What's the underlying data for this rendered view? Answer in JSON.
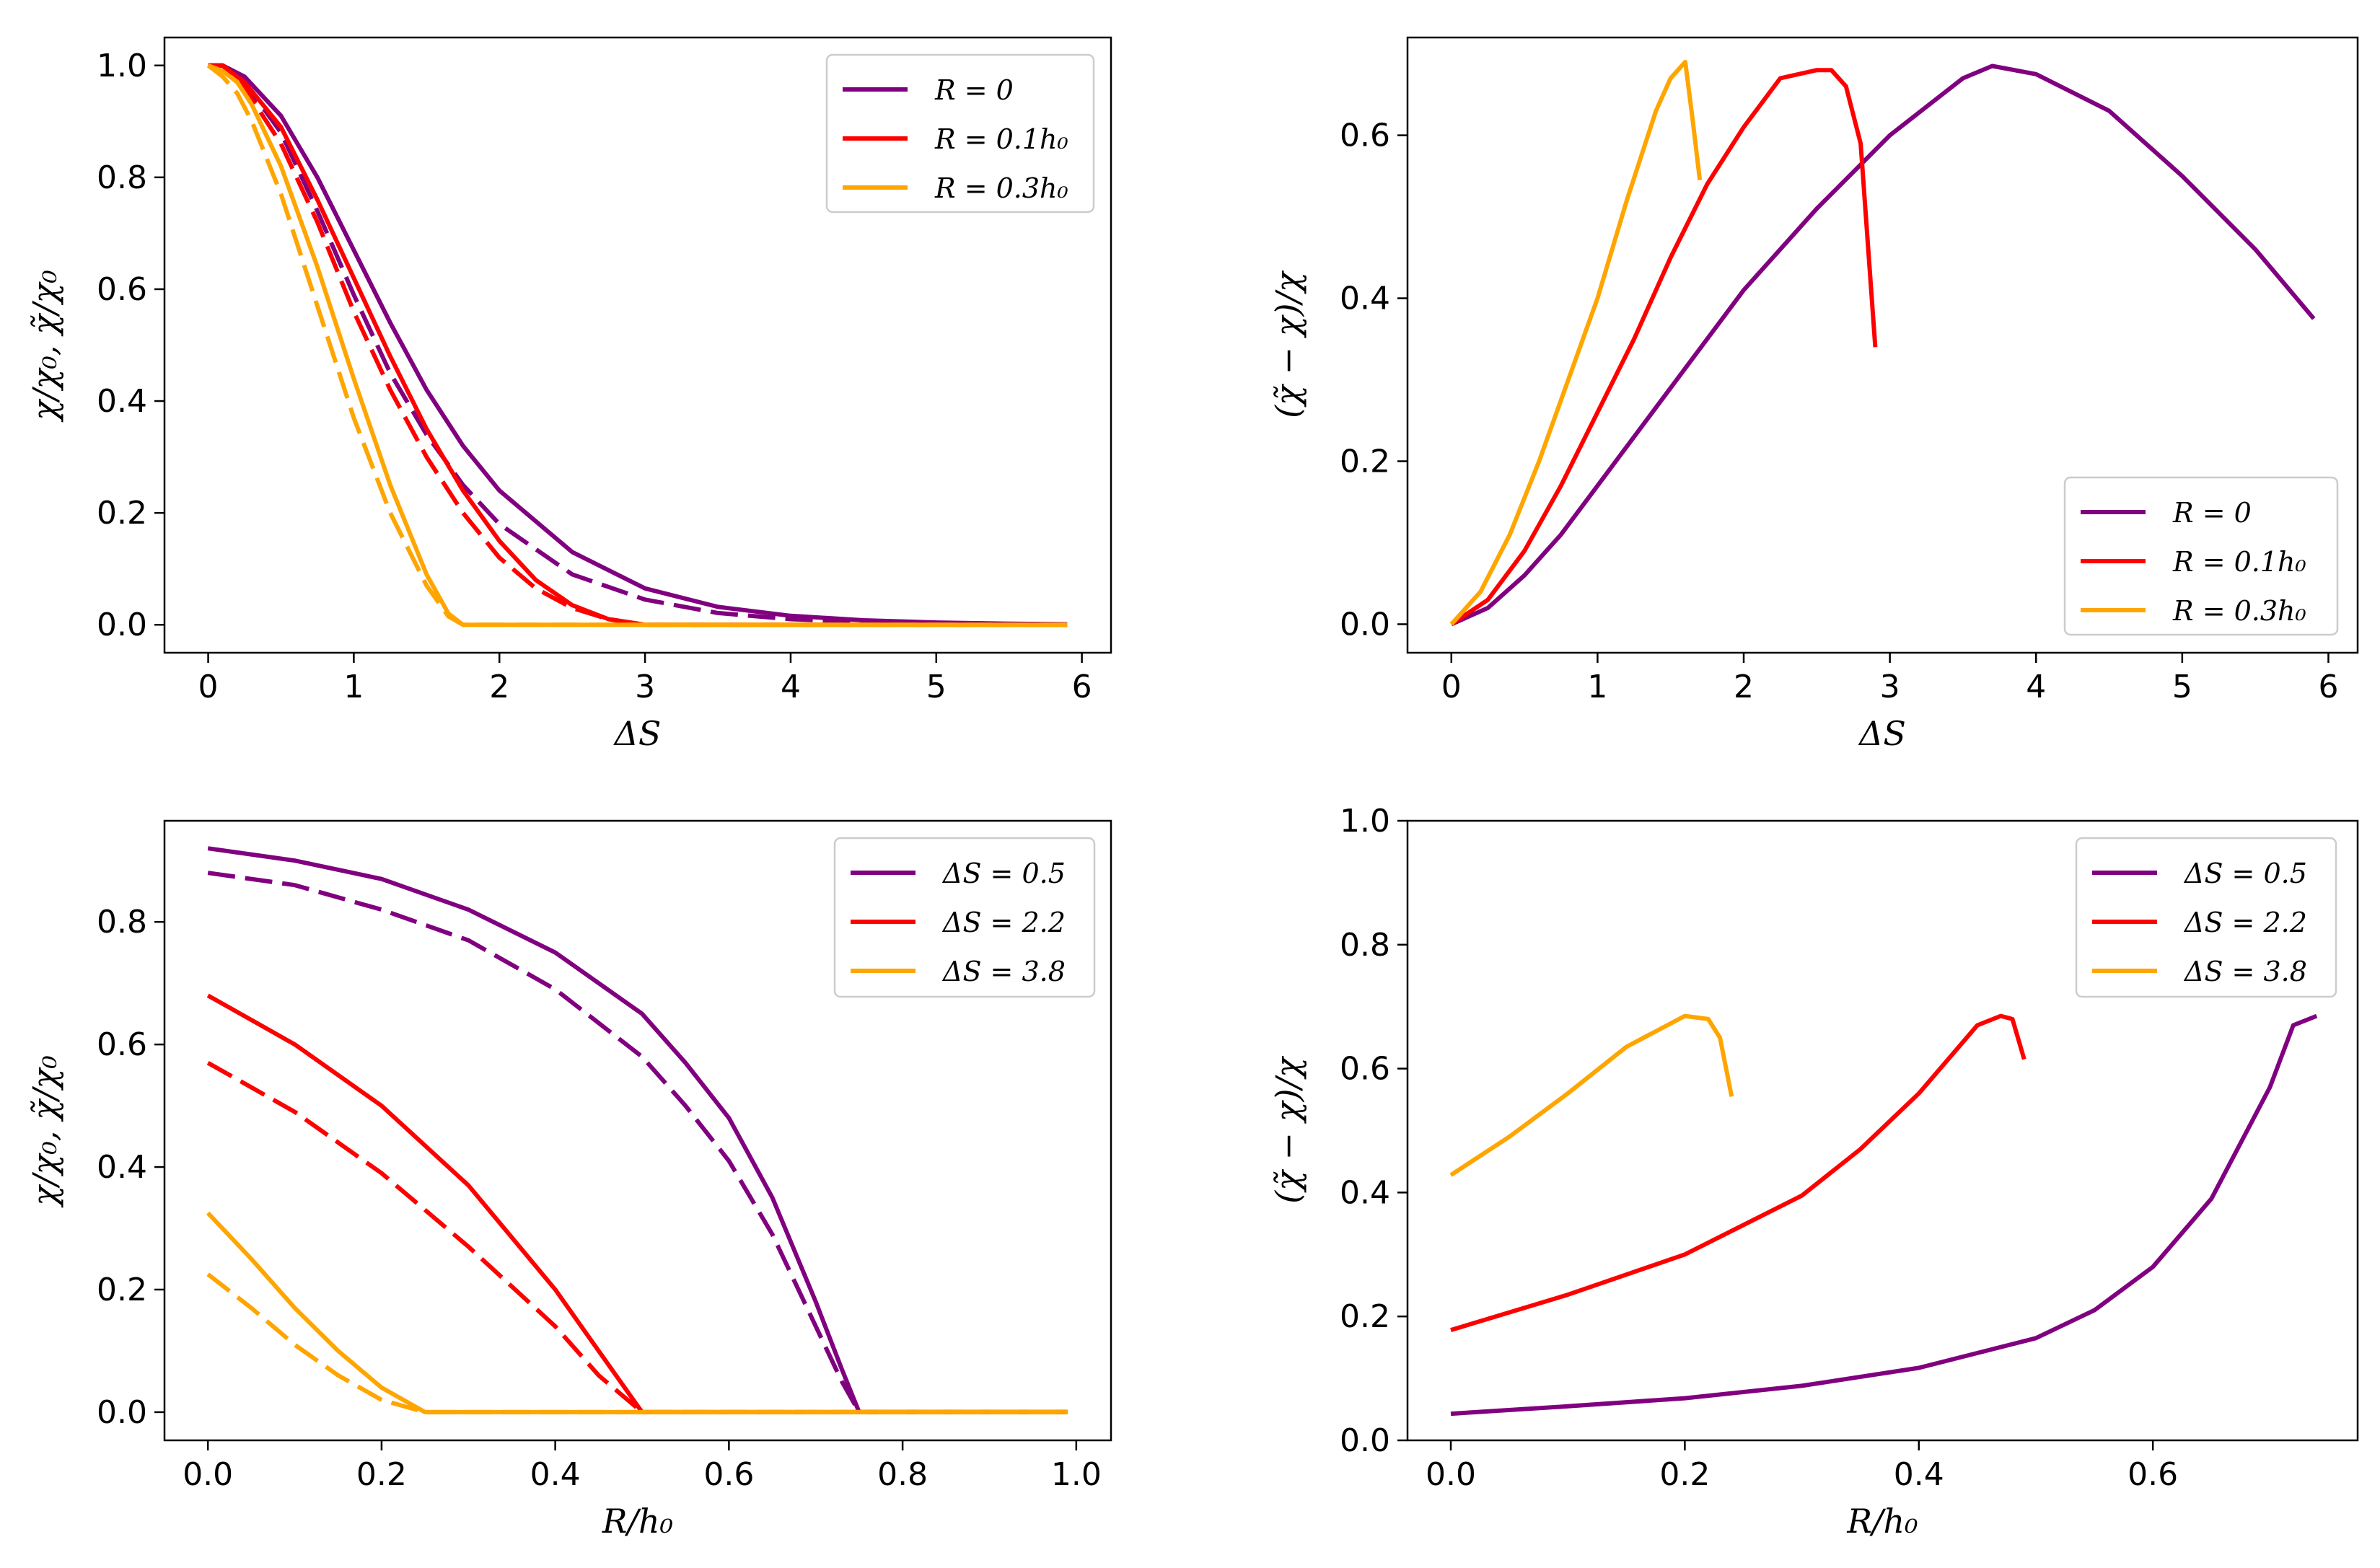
{
  "colors": {
    "purple": "#800080",
    "red": "#ff0000",
    "orange": "#ffa500"
  },
  "chart_data": [
    {
      "id": "top-left",
      "type": "line",
      "xlabel": "ΔS",
      "ylabel": "χ/χ₀, χ̃/χ₀",
      "xlim": [
        -0.3,
        6.2
      ],
      "ylim": [
        -0.05,
        1.05
      ],
      "xticks": [
        "0",
        "1",
        "2",
        "3",
        "4",
        "5",
        "6"
      ],
      "xtick_values": [
        0,
        1,
        2,
        3,
        4,
        5,
        6
      ],
      "yticks": [
        "0.0",
        "0.2",
        "0.4",
        "0.6",
        "0.8",
        "1.0"
      ],
      "ytick_values": [
        0,
        0.2,
        0.4,
        0.6,
        0.8,
        1.0
      ],
      "legend_position": "top-right",
      "legend": [
        "R = 0",
        "R = 0.1h₀",
        "R = 0.3h₀"
      ],
      "series": [
        {
          "name": "R = 0 (χ̃/χ₀)",
          "color": "purple",
          "dash": "solid",
          "x": [
            0,
            0.1,
            0.25,
            0.5,
            0.75,
            1.0,
            1.25,
            1.5,
            1.75,
            2.0,
            2.5,
            3.0,
            3.5,
            4.0,
            4.5,
            5.0,
            5.5,
            5.9
          ],
          "y": [
            1.0,
            1.0,
            0.98,
            0.91,
            0.8,
            0.67,
            0.54,
            0.42,
            0.32,
            0.24,
            0.13,
            0.065,
            0.032,
            0.016,
            0.008,
            0.004,
            0.002,
            0.001
          ]
        },
        {
          "name": "R = 0 (χ/χ₀)",
          "color": "purple",
          "dash": "dashed",
          "x": [
            0,
            0.1,
            0.25,
            0.5,
            0.75,
            1.0,
            1.25,
            1.5,
            1.75,
            2.0,
            2.5,
            3.0,
            3.5,
            4.0,
            4.5,
            5.0,
            5.5,
            5.9
          ],
          "y": [
            1.0,
            1.0,
            0.97,
            0.88,
            0.74,
            0.59,
            0.45,
            0.34,
            0.25,
            0.18,
            0.09,
            0.045,
            0.021,
            0.01,
            0.005,
            0.002,
            0.001,
            0.0
          ]
        },
        {
          "name": "R = 0.1h₀ (χ̃/χ₀)",
          "color": "red",
          "dash": "solid",
          "x": [
            0,
            0.1,
            0.25,
            0.5,
            0.75,
            1.0,
            1.25,
            1.5,
            1.75,
            2.0,
            2.25,
            2.5,
            2.75,
            3.0,
            3.5,
            4.0,
            5.0,
            5.9
          ],
          "y": [
            1.0,
            1.0,
            0.97,
            0.89,
            0.76,
            0.62,
            0.48,
            0.35,
            0.24,
            0.15,
            0.08,
            0.035,
            0.01,
            0.0,
            0.0,
            0.0,
            0.0,
            0.0
          ]
        },
        {
          "name": "R = 0.1h₀ (χ/χ₀)",
          "color": "red",
          "dash": "dashed",
          "x": [
            0,
            0.1,
            0.25,
            0.5,
            0.75,
            1.0,
            1.25,
            1.5,
            1.75,
            2.0,
            2.25,
            2.5,
            2.75,
            3.0,
            3.5,
            4.0,
            5.0,
            5.9
          ],
          "y": [
            1.0,
            1.0,
            0.96,
            0.86,
            0.72,
            0.56,
            0.42,
            0.3,
            0.2,
            0.12,
            0.065,
            0.03,
            0.01,
            0.0,
            0.0,
            0.0,
            0.0,
            0.0
          ]
        },
        {
          "name": "R = 0.3h₀ (χ̃/χ₀)",
          "color": "orange",
          "dash": "solid",
          "x": [
            0,
            0.1,
            0.2,
            0.3,
            0.5,
            0.75,
            1.0,
            1.25,
            1.5,
            1.65,
            1.75,
            2.0,
            3.0,
            4.0,
            5.0,
            5.9
          ],
          "y": [
            1.0,
            0.99,
            0.97,
            0.93,
            0.82,
            0.64,
            0.44,
            0.25,
            0.09,
            0.02,
            0.0,
            0.0,
            0.0,
            0.0,
            0.0,
            0.0
          ]
        },
        {
          "name": "R = 0.3h₀ (χ/χ₀)",
          "color": "orange",
          "dash": "dashed",
          "x": [
            0,
            0.1,
            0.2,
            0.3,
            0.5,
            0.75,
            1.0,
            1.25,
            1.5,
            1.65,
            1.75,
            2.0,
            3.0,
            4.0,
            5.0,
            5.9
          ],
          "y": [
            1.0,
            0.98,
            0.95,
            0.9,
            0.77,
            0.57,
            0.37,
            0.2,
            0.07,
            0.015,
            0.0,
            0.0,
            0.0,
            0.0,
            0.0,
            0.0
          ]
        }
      ]
    },
    {
      "id": "top-right",
      "type": "line",
      "xlabel": "ΔS",
      "ylabel": "(χ̃ − χ)/χ",
      "xlim": [
        -0.3,
        6.2
      ],
      "ylim": [
        -0.035,
        0.72
      ],
      "xticks": [
        "0",
        "1",
        "2",
        "3",
        "4",
        "5",
        "6"
      ],
      "xtick_values": [
        0,
        1,
        2,
        3,
        4,
        5,
        6
      ],
      "yticks": [
        "0.0",
        "0.2",
        "0.4",
        "0.6"
      ],
      "ytick_values": [
        0,
        0.2,
        0.4,
        0.6
      ],
      "legend_position": "bottom-right",
      "legend": [
        "R = 0",
        "R = 0.1h₀",
        "R = 0.3h₀"
      ],
      "series": [
        {
          "name": "R = 0",
          "color": "purple",
          "dash": "solid",
          "x": [
            0,
            0.25,
            0.5,
            0.75,
            1.0,
            1.5,
            2.0,
            2.5,
            3.0,
            3.5,
            3.7,
            4.0,
            4.5,
            5.0,
            5.5,
            5.9
          ],
          "y": [
            0.0,
            0.02,
            0.06,
            0.11,
            0.17,
            0.29,
            0.41,
            0.51,
            0.6,
            0.67,
            0.685,
            0.675,
            0.63,
            0.55,
            0.46,
            0.375
          ]
        },
        {
          "name": "R = 0.1h₀",
          "color": "red",
          "dash": "solid",
          "x": [
            0,
            0.25,
            0.5,
            0.75,
            1.0,
            1.25,
            1.5,
            1.75,
            2.0,
            2.25,
            2.5,
            2.6,
            2.7,
            2.8,
            2.9
          ],
          "y": [
            0.0,
            0.03,
            0.09,
            0.17,
            0.26,
            0.35,
            0.45,
            0.54,
            0.61,
            0.67,
            0.68,
            0.68,
            0.66,
            0.59,
            0.34
          ]
        },
        {
          "name": "R = 0.3h₀",
          "color": "orange",
          "dash": "solid",
          "x": [
            0,
            0.2,
            0.4,
            0.6,
            0.8,
            1.0,
            1.2,
            1.4,
            1.5,
            1.6,
            1.65,
            1.7
          ],
          "y": [
            0.0,
            0.04,
            0.11,
            0.2,
            0.3,
            0.4,
            0.52,
            0.63,
            0.67,
            0.69,
            0.62,
            0.545
          ]
        }
      ]
    },
    {
      "id": "bottom-left",
      "type": "line",
      "xlabel": "R/h₀",
      "ylabel": "χ/χ₀, χ̃/χ₀",
      "xlim": [
        -0.05,
        1.04
      ],
      "ylim": [
        -0.046,
        0.965
      ],
      "xticks": [
        "0.0",
        "0.2",
        "0.4",
        "0.6",
        "0.8",
        "1.0"
      ],
      "xtick_values": [
        0,
        0.2,
        0.4,
        0.6,
        0.8,
        1.0
      ],
      "yticks": [
        "0.0",
        "0.2",
        "0.4",
        "0.6",
        "0.8"
      ],
      "ytick_values": [
        0,
        0.2,
        0.4,
        0.6,
        0.8
      ],
      "legend_position": "top-right",
      "legend": [
        "ΔS = 0.5",
        "ΔS = 2.2",
        "ΔS = 3.8"
      ],
      "series": [
        {
          "name": "ΔS = 0.5 (χ̃/χ₀)",
          "color": "purple",
          "dash": "solid",
          "x": [
            0,
            0.1,
            0.2,
            0.3,
            0.4,
            0.5,
            0.55,
            0.6,
            0.65,
            0.7,
            0.73,
            0.75,
            0.8,
            0.9,
            0.99
          ],
          "y": [
            0.92,
            0.9,
            0.87,
            0.82,
            0.75,
            0.65,
            0.57,
            0.48,
            0.35,
            0.18,
            0.07,
            0.0,
            0.0,
            0.0,
            0.0
          ]
        },
        {
          "name": "ΔS = 0.5 (χ/χ₀)",
          "color": "purple",
          "dash": "dashed",
          "x": [
            0,
            0.1,
            0.2,
            0.3,
            0.4,
            0.5,
            0.55,
            0.6,
            0.65,
            0.7,
            0.73,
            0.75,
            0.8,
            0.9,
            0.99
          ],
          "y": [
            0.88,
            0.86,
            0.82,
            0.77,
            0.69,
            0.58,
            0.5,
            0.41,
            0.29,
            0.14,
            0.05,
            0.0,
            0.0,
            0.0,
            0.0
          ]
        },
        {
          "name": "ΔS = 2.2 (χ̃/χ₀)",
          "color": "red",
          "dash": "solid",
          "x": [
            0,
            0.1,
            0.2,
            0.3,
            0.4,
            0.45,
            0.5,
            0.6,
            0.8,
            0.99
          ],
          "y": [
            0.68,
            0.6,
            0.5,
            0.37,
            0.2,
            0.1,
            0.0,
            0.0,
            0.0,
            0.0
          ]
        },
        {
          "name": "ΔS = 2.2 (χ/χ₀)",
          "color": "red",
          "dash": "dashed",
          "x": [
            0,
            0.1,
            0.2,
            0.3,
            0.4,
            0.45,
            0.5,
            0.6,
            0.8,
            0.99
          ],
          "y": [
            0.57,
            0.49,
            0.39,
            0.27,
            0.14,
            0.06,
            0.0,
            0.0,
            0.0,
            0.0
          ]
        },
        {
          "name": "ΔS = 3.8 (χ̃/χ₀)",
          "color": "orange",
          "dash": "solid",
          "x": [
            0,
            0.05,
            0.1,
            0.15,
            0.2,
            0.25,
            0.4,
            0.6,
            0.8,
            0.99
          ],
          "y": [
            0.325,
            0.25,
            0.17,
            0.1,
            0.04,
            0.0,
            0.0,
            0.0,
            0.0,
            0.0
          ]
        },
        {
          "name": "ΔS = 3.8 (χ/χ₀)",
          "color": "orange",
          "dash": "dashed",
          "x": [
            0,
            0.05,
            0.1,
            0.15,
            0.2,
            0.25,
            0.4,
            0.6,
            0.8,
            0.99
          ],
          "y": [
            0.225,
            0.17,
            0.11,
            0.06,
            0.02,
            0.0,
            0.0,
            0.0,
            0.0,
            0.0
          ]
        }
      ]
    },
    {
      "id": "bottom-right",
      "type": "line",
      "xlabel": "R/h₀",
      "ylabel": "(χ̃ − χ)/χ",
      "xlim": [
        -0.037,
        0.775
      ],
      "ylim": [
        0.0,
        1.0
      ],
      "xticks": [
        "0.0",
        "0.2",
        "0.4",
        "0.6"
      ],
      "xtick_values": [
        0,
        0.2,
        0.4,
        0.6
      ],
      "yticks": [
        "0.0",
        "0.2",
        "0.4",
        "0.6",
        "0.8",
        "1.0"
      ],
      "ytick_values": [
        0,
        0.2,
        0.4,
        0.6,
        0.8,
        1.0
      ],
      "legend_position": "top-right",
      "legend": [
        "ΔS = 0.5",
        "ΔS = 2.2",
        "ΔS = 3.8"
      ],
      "series": [
        {
          "name": "ΔS = 0.5",
          "color": "purple",
          "dash": "solid",
          "x": [
            0,
            0.1,
            0.2,
            0.3,
            0.4,
            0.5,
            0.55,
            0.6,
            0.65,
            0.7,
            0.72,
            0.74
          ],
          "y": [
            0.043,
            0.055,
            0.068,
            0.088,
            0.117,
            0.165,
            0.21,
            0.28,
            0.39,
            0.57,
            0.67,
            0.685
          ]
        },
        {
          "name": "ΔS = 2.2",
          "color": "red",
          "dash": "solid",
          "x": [
            0,
            0.1,
            0.2,
            0.3,
            0.35,
            0.4,
            0.45,
            0.47,
            0.48,
            0.49
          ],
          "y": [
            0.178,
            0.235,
            0.3,
            0.395,
            0.47,
            0.56,
            0.67,
            0.685,
            0.68,
            0.615
          ]
        },
        {
          "name": "ΔS = 3.8",
          "color": "orange",
          "dash": "solid",
          "x": [
            0,
            0.05,
            0.1,
            0.15,
            0.2,
            0.22,
            0.23,
            0.24
          ],
          "y": [
            0.428,
            0.49,
            0.56,
            0.635,
            0.685,
            0.68,
            0.65,
            0.555
          ]
        }
      ]
    }
  ]
}
